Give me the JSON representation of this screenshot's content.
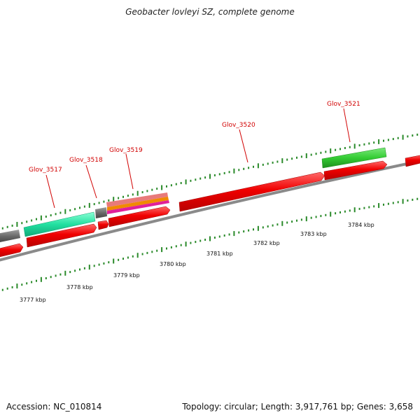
{
  "title": "Geobacter lovleyi SZ, complete genome",
  "footer": {
    "accession": "Accession: NC_010814",
    "summary": "Topology: circular; Length: 3,917,761 bp; Genes: 3,658"
  },
  "colors": {
    "gene_red": "#ee0000",
    "backbone": "#8a8a8a",
    "tick_green": "#2a8a2a",
    "label_red": "#d10000",
    "feature_teal": "#22e0a0",
    "feature_green": "#33cc33",
    "feature_gray": "#707070",
    "feature_orange": "#f08a00",
    "feature_magenta": "#e0209a"
  },
  "scale_labels": [
    "3777 kbp",
    "3778 kbp",
    "3779 kbp",
    "3780 kbp",
    "3781 kbp",
    "3782 kbp",
    "3783 kbp",
    "3784 kbp"
  ],
  "gene_labels": [
    "Glov_3517",
    "Glov_3518",
    "Glov_3519",
    "Glov_3520",
    "Glov_3521"
  ]
}
